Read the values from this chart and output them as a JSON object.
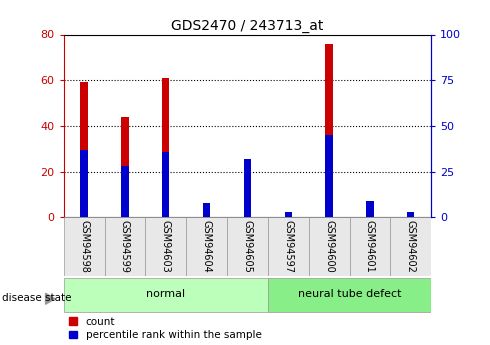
{
  "title": "GDS2470 / 243713_at",
  "samples": [
    "GSM94598",
    "GSM94599",
    "GSM94603",
    "GSM94604",
    "GSM94605",
    "GSM94597",
    "GSM94600",
    "GSM94601",
    "GSM94602"
  ],
  "count_values": [
    59,
    44,
    61,
    1,
    25,
    2,
    76,
    6,
    2
  ],
  "percentile_values": [
    37,
    28,
    36,
    8,
    32,
    3,
    45,
    9,
    3
  ],
  "groups": [
    {
      "label": "normal",
      "start": 0,
      "end": 5
    },
    {
      "label": "neural tube defect",
      "start": 5,
      "end": 9
    }
  ],
  "ylim_left": [
    0,
    80
  ],
  "ylim_right": [
    0,
    100
  ],
  "yticks_left": [
    0,
    20,
    40,
    60,
    80
  ],
  "yticks_right": [
    0,
    25,
    50,
    75,
    100
  ],
  "count_bar_width": 0.18,
  "percentile_bar_width": 0.18,
  "count_color": "#cc0000",
  "percentile_color": "#0000cc",
  "group_color_normal": "#bbffbb",
  "group_color_ntd": "#88ee88",
  "left_axis_color": "#cc0000",
  "right_axis_color": "#0000cc",
  "grid_color": "#000000",
  "legend_count_label": "count",
  "legend_percentile_label": "percentile rank within the sample",
  "disease_state_label": "disease state"
}
